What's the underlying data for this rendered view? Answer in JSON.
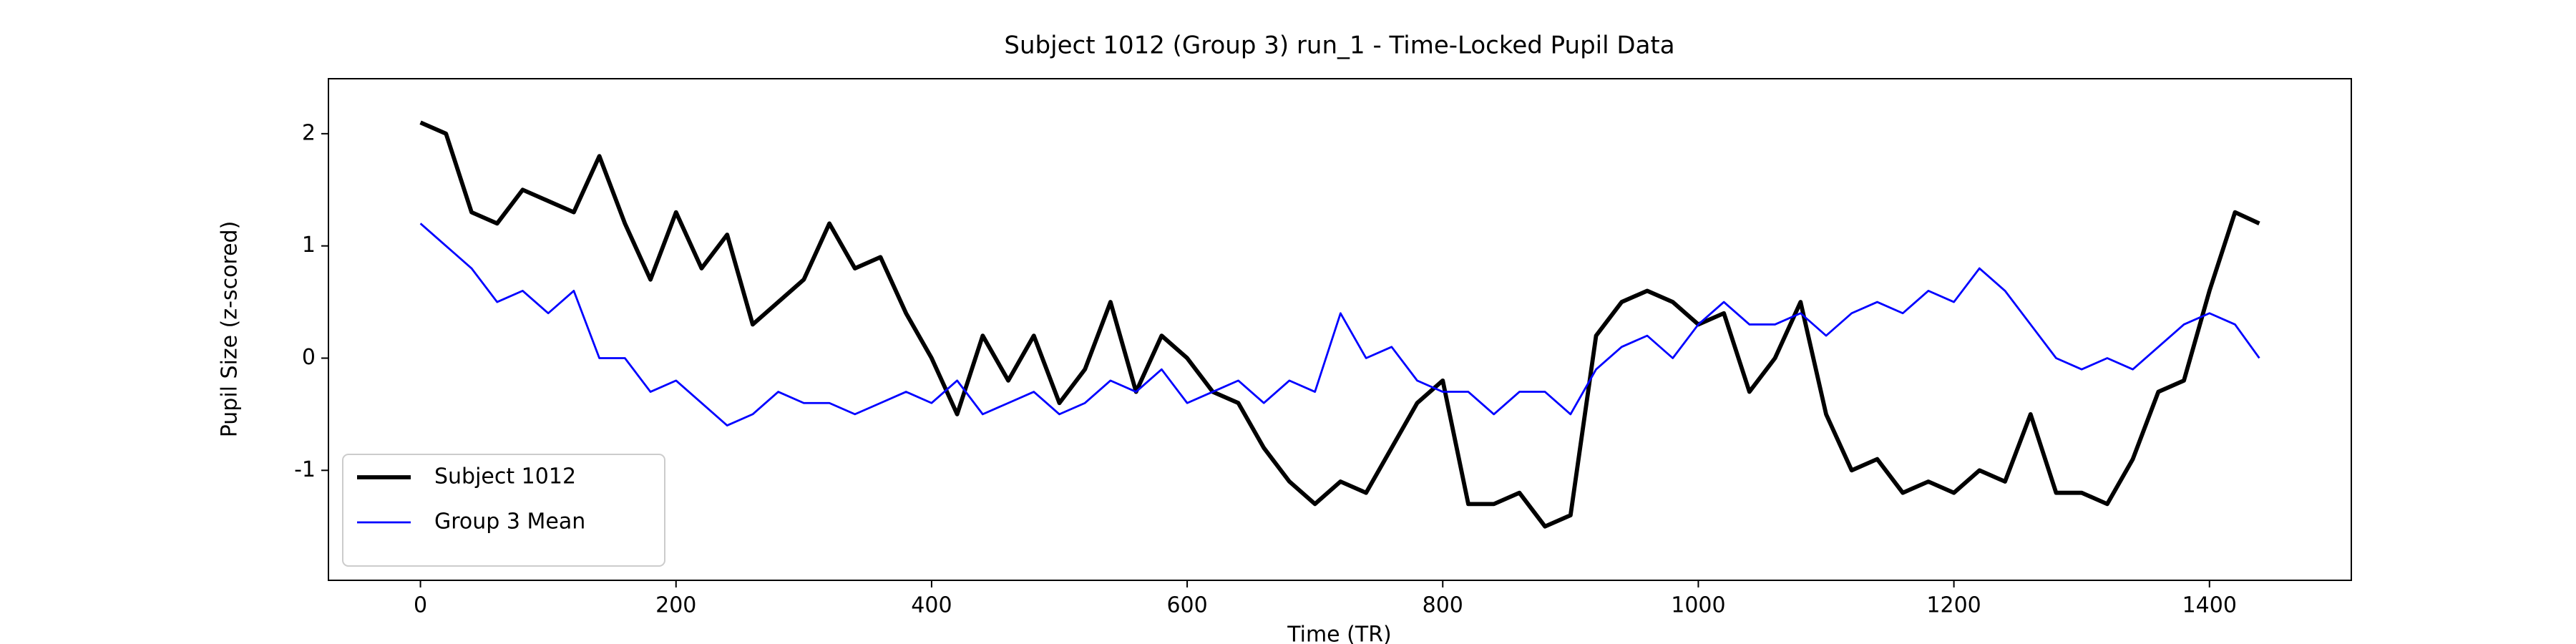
{
  "chart_data": {
    "type": "line",
    "title": "Subject 1012 (Group 3) run_1 - Time-Locked Pupil Data",
    "xlabel": "Time (TR)",
    "ylabel": "Pupil Size (z-scored)",
    "x": [
      0,
      20,
      40,
      60,
      80,
      100,
      120,
      140,
      160,
      180,
      200,
      220,
      240,
      260,
      280,
      300,
      320,
      340,
      360,
      380,
      400,
      420,
      440,
      460,
      480,
      500,
      520,
      540,
      560,
      580,
      600,
      620,
      640,
      660,
      680,
      700,
      720,
      740,
      760,
      780,
      800,
      820,
      840,
      860,
      880,
      900,
      920,
      940,
      960,
      980,
      1000,
      1020,
      1040,
      1060,
      1080,
      1100,
      1120,
      1140,
      1160,
      1180,
      1200,
      1220,
      1240,
      1260,
      1280,
      1300,
      1320,
      1340,
      1360,
      1380,
      1400,
      1420,
      1439
    ],
    "series": [
      {
        "name": "Subject 1012",
        "color": "#000000",
        "line_width": 2.5,
        "values": [
          2.1,
          2.0,
          1.3,
          1.2,
          1.5,
          1.4,
          1.3,
          1.8,
          1.2,
          0.7,
          1.3,
          0.8,
          1.1,
          0.3,
          0.5,
          0.7,
          1.2,
          0.8,
          0.9,
          0.4,
          0.0,
          -0.5,
          0.2,
          -0.2,
          0.2,
          -0.4,
          -0.1,
          0.5,
          -0.3,
          0.2,
          0.0,
          -0.3,
          -0.4,
          -0.8,
          -1.1,
          -1.3,
          -1.1,
          -1.2,
          -0.8,
          -0.4,
          -0.2,
          -1.3,
          -1.3,
          -1.2,
          -1.5,
          -1.4,
          0.2,
          0.5,
          0.6,
          0.5,
          0.3,
          0.4,
          -0.3,
          0.0,
          0.5,
          -0.5,
          -1.0,
          -0.9,
          -1.2,
          -1.1,
          -1.2,
          -1.0,
          -1.1,
          -0.5,
          -1.2,
          -1.2,
          -1.3,
          -0.9,
          -0.3,
          -0.2,
          0.6,
          1.3,
          1.2
        ]
      },
      {
        "name": "Group 3 Mean",
        "color": "#0000ff",
        "line_width": 1.2,
        "values": [
          1.2,
          1.0,
          0.8,
          0.5,
          0.6,
          0.4,
          0.6,
          0.0,
          0.0,
          -0.3,
          -0.2,
          -0.4,
          -0.6,
          -0.5,
          -0.3,
          -0.4,
          -0.4,
          -0.5,
          -0.4,
          -0.3,
          -0.4,
          -0.2,
          -0.5,
          -0.4,
          -0.3,
          -0.5,
          -0.4,
          -0.2,
          -0.3,
          -0.1,
          -0.4,
          -0.3,
          -0.2,
          -0.4,
          -0.2,
          -0.3,
          0.4,
          0.0,
          0.1,
          -0.2,
          -0.3,
          -0.3,
          -0.5,
          -0.3,
          -0.3,
          -0.5,
          -0.1,
          0.1,
          0.2,
          0.0,
          0.3,
          0.5,
          0.3,
          0.3,
          0.4,
          0.2,
          0.4,
          0.5,
          0.4,
          0.6,
          0.5,
          0.8,
          0.6,
          0.3,
          0.0,
          -0.1,
          0.0,
          -0.1,
          0.1,
          0.3,
          0.4,
          0.3,
          0.0
        ]
      }
    ],
    "xlim": [
      -72,
      1511
    ],
    "xticks": [
      0,
      200,
      400,
      600,
      800,
      1000,
      1200,
      1400
    ],
    "ylim": [
      -1.98,
      2.49
    ],
    "yticks": [
      -1,
      0,
      1,
      2
    ],
    "grid": false,
    "legend": "lower left"
  }
}
